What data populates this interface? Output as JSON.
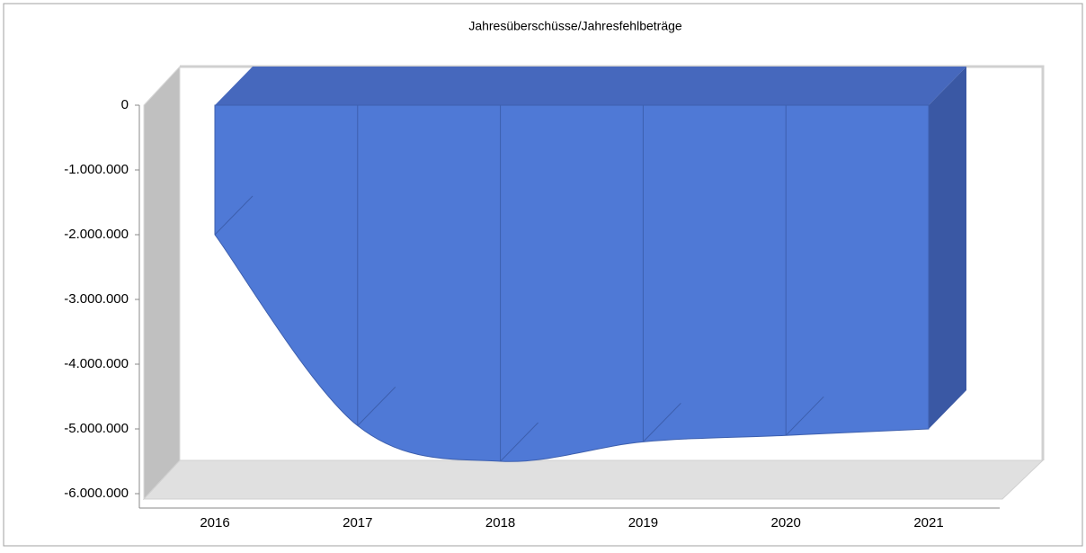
{
  "chart_data": {
    "type": "area3d",
    "title": "Jahresüberschüsse/Jahresfehlbeträge",
    "categories": [
      "2016",
      "2017",
      "2018",
      "2019",
      "2020",
      "2021"
    ],
    "values": [
      -2000000,
      -4950000,
      -5500000,
      -5200000,
      -5100000,
      -5000000
    ],
    "color": "#4f79d6",
    "ylim": [
      -6000000,
      0
    ],
    "yticks": [
      0,
      {
        "value": -1000000,
        "label": "-1.000.000"
      },
      {
        "value": -2000000,
        "label": "-2.000.000"
      },
      {
        "value": -3000000,
        "label": "-3.000.000"
      },
      {
        "value": -4000000,
        "label": "-4.000.000"
      },
      {
        "value": -5000000,
        "label": "-5.000.000"
      },
      {
        "value": -6000000,
        "label": "-6.000.000"
      }
    ]
  }
}
